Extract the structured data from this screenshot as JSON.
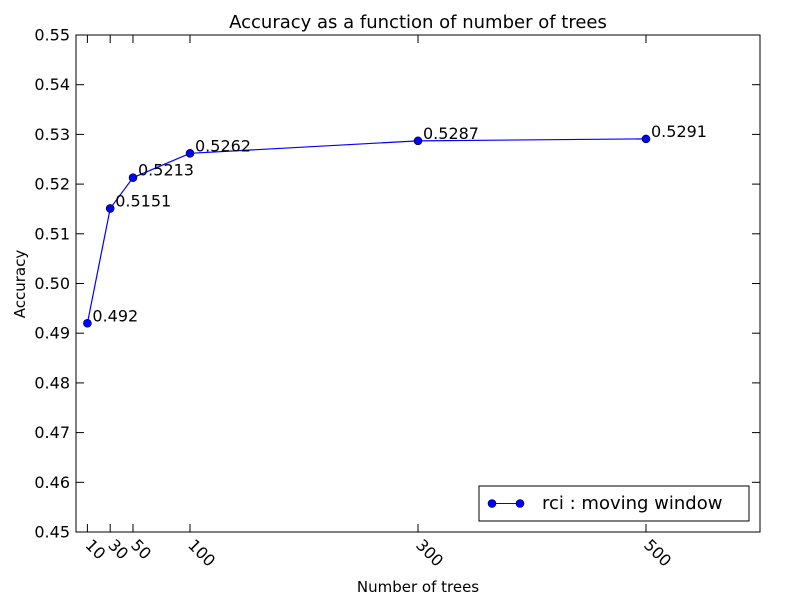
{
  "chart_data": {
    "type": "line",
    "title": "Accuracy as a function of number of trees",
    "xlabel": "Number of trees",
    "ylabel": "Accuracy",
    "xlim": [
      0,
      600
    ],
    "ylim": [
      0.45,
      0.55
    ],
    "x_ticks": [
      10,
      30,
      50,
      100,
      300,
      500
    ],
    "y_ticks": [
      0.45,
      0.46,
      0.47,
      0.48,
      0.49,
      0.5,
      0.51,
      0.52,
      0.53,
      0.54,
      0.55
    ],
    "y_tick_labels": [
      "0.45",
      "0.46",
      "0.47",
      "0.48",
      "0.49",
      "0.50",
      "0.51",
      "0.52",
      "0.53",
      "0.54",
      "0.55"
    ],
    "grid": false,
    "legend_position": "lower-right",
    "series": [
      {
        "name": "rci : moving window",
        "color": "#0000ff",
        "marker": "circle",
        "x": [
          10,
          30,
          50,
          100,
          300,
          500
        ],
        "y": [
          0.492,
          0.5151,
          0.5213,
          0.5262,
          0.5287,
          0.5291
        ],
        "point_labels": [
          "0.492",
          "0.5151",
          "0.5213",
          "0.5262",
          "0.5287",
          "0.5291"
        ]
      }
    ]
  }
}
